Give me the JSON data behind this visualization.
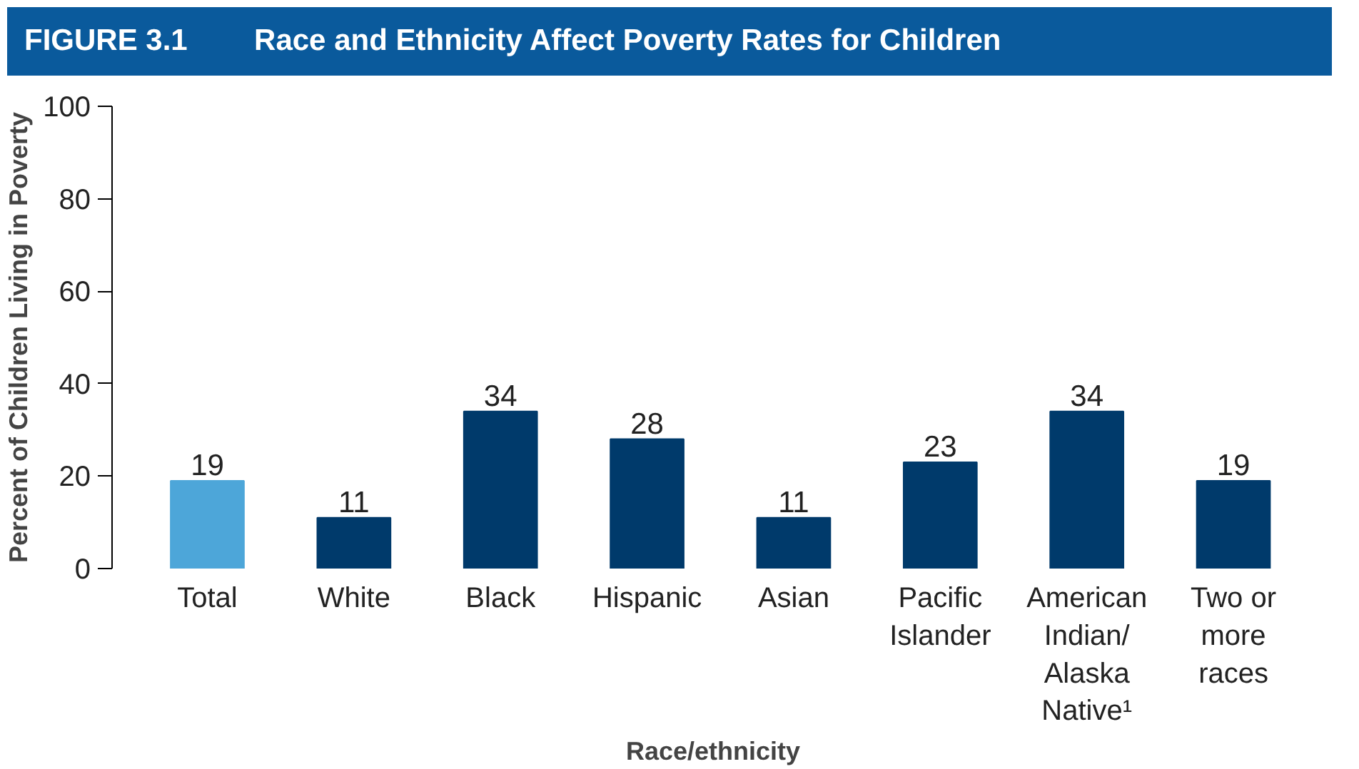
{
  "chart_data": {
    "type": "bar",
    "title": "Race and Ethnicity Affect Poverty Rates for Children",
    "subtitle": "FIGURE 3.1",
    "categories": [
      "Total",
      "White",
      "Black",
      "Hispanic",
      "Asian",
      "Pacific Islander",
      "American Indian/ Alaska Native¹",
      "Two or more races"
    ],
    "values": [
      19,
      11,
      34,
      28,
      11,
      23,
      34,
      19
    ],
    "colors": [
      "#4da6d9",
      "#003a6b",
      "#003a6b",
      "#003a6b",
      "#003a6b",
      "#003a6b",
      "#003a6b",
      "#003a6b"
    ],
    "xlabel": "Race/ethnicity",
    "ylabel": "Percent of Children Living in Poverty",
    "ylim": [
      0,
      100
    ],
    "yticks": [
      0,
      20,
      40,
      60,
      80,
      100
    ],
    "data_labels": true,
    "grid": false
  }
}
